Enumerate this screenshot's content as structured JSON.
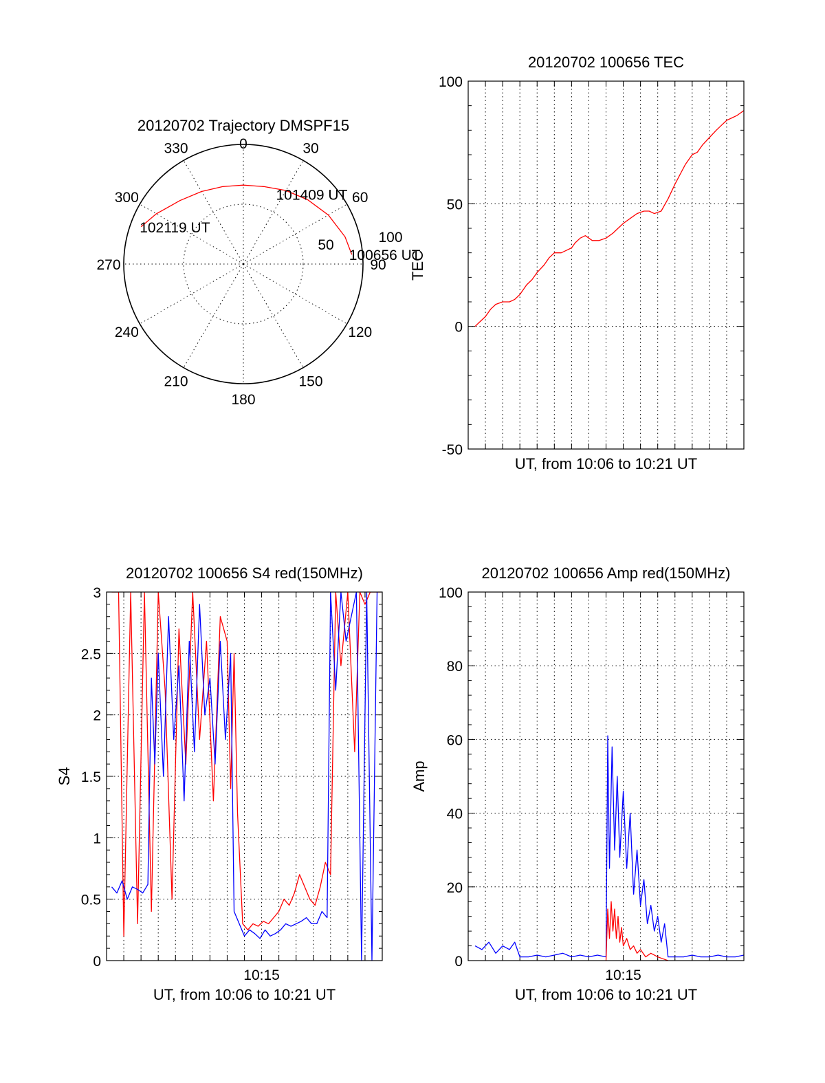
{
  "chart_data": [
    {
      "id": "trajectory",
      "type": "polar",
      "title": "20120702 Trajectory DMSPF15",
      "angle_labels": [
        "0",
        "30",
        "60",
        "90",
        "120",
        "150",
        "180",
        "210",
        "240",
        "270",
        "300",
        "330"
      ],
      "radius_labels": [
        "50",
        "100"
      ],
      "radial_range": [
        0,
        100
      ],
      "rings": [
        50,
        100
      ],
      "spokes_deg": [
        0,
        30,
        60,
        90,
        120,
        150,
        180,
        210,
        240,
        270,
        300,
        330
      ],
      "color": "#ff0000",
      "track": [
        {
          "az": 290,
          "r": 91
        },
        {
          "az": 300,
          "r": 84
        },
        {
          "az": 315,
          "r": 75
        },
        {
          "az": 330,
          "r": 70
        },
        {
          "az": 345,
          "r": 67
        },
        {
          "az": 0,
          "r": 66
        },
        {
          "az": 15,
          "r": 67
        },
        {
          "az": 30,
          "r": 71
        },
        {
          "az": 45,
          "r": 76
        },
        {
          "az": 60,
          "r": 82
        },
        {
          "az": 75,
          "r": 88
        },
        {
          "az": 85,
          "r": 91
        }
      ],
      "annotations": [
        {
          "text": "102119 UT",
          "az": 290,
          "r": 91
        },
        {
          "text": "101409 UT",
          "az": 45,
          "r": 76
        },
        {
          "text": "100656 UT",
          "az": 85,
          "r": 91
        }
      ]
    },
    {
      "id": "tec",
      "type": "line",
      "title": "20120702 100656 TEC",
      "xlabel": "UT, from 10:06 to 10:21 UT",
      "ylabel": "TEC",
      "xlim": [
        606.0,
        622.0
      ],
      "ylim": [
        -50,
        100
      ],
      "yticks": [
        -50,
        0,
        50,
        100
      ],
      "xgrid": [
        607,
        608,
        609,
        610,
        611,
        612,
        613,
        614,
        615,
        616,
        617,
        618,
        619,
        620,
        621
      ],
      "xticklabels": [],
      "series": [
        {
          "color": "#ff0000",
          "x": [
            606.4,
            606.7,
            607.0,
            607.3,
            607.6,
            608.0,
            608.4,
            608.7,
            609.0,
            609.4,
            609.7,
            610.0,
            610.4,
            610.7,
            611.0,
            611.4,
            611.7,
            612.0,
            612.2,
            612.5,
            612.8,
            613.2,
            613.6,
            614.0,
            614.4,
            614.7,
            615.0,
            615.4,
            615.8,
            616.2,
            616.5,
            616.8,
            617.2,
            617.6,
            618.0,
            618.3,
            618.6,
            619.0,
            619.3,
            619.6,
            620.0,
            620.4,
            620.7,
            621.0,
            621.3,
            621.6,
            621.8,
            622.0
          ],
          "y": [
            0,
            2,
            4,
            7,
            9,
            10,
            10,
            11,
            13,
            17,
            19,
            22,
            25,
            28,
            30,
            30,
            31,
            32,
            34,
            36,
            37,
            35,
            35,
            36,
            38,
            40,
            42,
            44,
            46,
            47,
            47,
            46,
            47,
            52,
            58,
            62,
            66,
            70,
            71,
            74,
            77,
            80,
            82,
            84,
            85,
            86,
            87,
            88
          ]
        }
      ]
    },
    {
      "id": "s4",
      "type": "line",
      "title": "20120702 100656 S4 red(150MHz)",
      "xlabel": "UT, from 10:06 to 10:21 UT",
      "ylabel": "S4",
      "xlim": [
        606.0,
        622.0
      ],
      "ylim": [
        0,
        3
      ],
      "yticks": [
        0,
        0.5,
        1,
        1.5,
        2,
        2.5,
        3
      ],
      "yticklabels": [
        "0",
        "0.5",
        "1",
        "1.5",
        "2",
        "2.5",
        "3"
      ],
      "xgrid": [
        607,
        608,
        609,
        610,
        611,
        612,
        613,
        614,
        615,
        616,
        617,
        618,
        619,
        620,
        621
      ],
      "xticks": [
        {
          "x": 615,
          "label": "10:15"
        }
      ],
      "series": [
        {
          "color": "#ff0000",
          "x": [
            606.3,
            606.7,
            607.0,
            607.4,
            607.8,
            608.2,
            608.6,
            609.0,
            609.4,
            609.8,
            610.2,
            610.6,
            611.0,
            611.4,
            611.8,
            612.2,
            612.6,
            613.0,
            613.2,
            613.4,
            613.6,
            613.9,
            614.2,
            614.5,
            614.8,
            615.1,
            615.4,
            615.7,
            616.0,
            616.3,
            616.6,
            616.9,
            617.2,
            617.5,
            617.8,
            618.1,
            618.4,
            618.7,
            619.0,
            619.3,
            619.6,
            620.0,
            620.4,
            620.7,
            621.0,
            621.3,
            621.6,
            621.9
          ],
          "y": [
            3,
            3,
            0.2,
            3,
            0.3,
            3,
            0.4,
            3,
            2.2,
            0.5,
            2.7,
            1.6,
            3,
            1.8,
            2.6,
            1.3,
            2.8,
            2.6,
            1.4,
            2.5,
            1.2,
            0.3,
            0.25,
            0.3,
            0.28,
            0.32,
            0.3,
            0.35,
            0.4,
            0.5,
            0.45,
            0.55,
            0.7,
            0.6,
            0.5,
            0.45,
            0.6,
            0.8,
            0.7,
            3,
            2.4,
            3,
            1.7,
            3,
            2.9,
            3,
            3,
            3
          ]
        },
        {
          "color": "#0000ff",
          "x": [
            606.3,
            606.6,
            606.9,
            607.2,
            607.5,
            607.8,
            608.1,
            608.4,
            608.6,
            608.8,
            609.0,
            609.3,
            609.6,
            609.9,
            610.2,
            610.5,
            610.8,
            611.1,
            611.4,
            611.7,
            612.0,
            612.3,
            612.6,
            612.9,
            613.2,
            613.4,
            613.7,
            614.0,
            614.3,
            614.6,
            614.9,
            615.2,
            615.5,
            615.8,
            616.1,
            616.4,
            616.7,
            617.0,
            617.3,
            617.6,
            617.9,
            618.2,
            618.5,
            618.8,
            619.0,
            619.3,
            619.6,
            619.9,
            620.2,
            620.5,
            620.8,
            621.1,
            621.4,
            621.7
          ],
          "y": [
            0.6,
            0.55,
            0.65,
            0.5,
            0.6,
            0.58,
            0.55,
            0.62,
            2.3,
            1.6,
            2.5,
            1.5,
            2.8,
            1.8,
            2.4,
            1.3,
            2.6,
            1.7,
            2.9,
            2.0,
            2.3,
            1.6,
            2.6,
            1.8,
            2.5,
            0.4,
            0.3,
            0.2,
            0.25,
            0.22,
            0.18,
            0.25,
            0.2,
            0.22,
            0.25,
            0.3,
            0.28,
            0.3,
            0.32,
            0.35,
            0.3,
            0.3,
            0.4,
            0.35,
            3,
            2.2,
            3,
            2.6,
            2.8,
            3,
            0,
            3,
            0,
            3
          ]
        }
      ]
    },
    {
      "id": "amp",
      "type": "line",
      "title": "20120702 100656 Amp red(150MHz)",
      "xlabel": "UT, from 10:06 to 10:21 UT",
      "ylabel": "Amp",
      "xlim": [
        606.0,
        622.0
      ],
      "ylim": [
        0,
        100
      ],
      "yticks": [
        0,
        20,
        40,
        60,
        80,
        100
      ],
      "xgrid": [
        607,
        608,
        609,
        610,
        611,
        612,
        613,
        614,
        615,
        616,
        617,
        618,
        619,
        620,
        621
      ],
      "xticks": [
        {
          "x": 615,
          "label": "10:15"
        }
      ],
      "series": [
        {
          "color": "#0000ff",
          "x": [
            606.4,
            606.8,
            607.2,
            607.6,
            608.0,
            608.4,
            608.7,
            609.0,
            609.5,
            610.0,
            610.5,
            611.0,
            611.5,
            612.0,
            612.5,
            613.0,
            613.5,
            614.0,
            614.1,
            614.2,
            614.35,
            614.5,
            614.65,
            614.8,
            615.0,
            615.2,
            615.4,
            615.6,
            615.8,
            616.0,
            616.2,
            616.4,
            616.6,
            616.8,
            617.0,
            617.2,
            617.4,
            617.6,
            618.0,
            618.5,
            619.0,
            619.5,
            620.0,
            620.5,
            621.0,
            621.5,
            622.0
          ],
          "y": [
            4,
            3,
            5,
            2,
            4,
            3,
            5,
            1,
            1,
            1.5,
            1,
            1.5,
            2,
            1,
            1.5,
            1,
            1.5,
            1,
            61,
            25,
            58,
            30,
            50,
            28,
            46,
            25,
            40,
            18,
            30,
            15,
            22,
            10,
            15,
            8,
            12,
            5,
            10,
            1,
            1,
            1,
            1.5,
            1,
            1,
            1.5,
            1,
            1,
            1.5
          ]
        },
        {
          "color": "#ff0000",
          "x": [
            614.0,
            614.1,
            614.2,
            614.3,
            614.4,
            614.5,
            614.6,
            614.7,
            614.8,
            614.9,
            615.0,
            615.2,
            615.4,
            615.6,
            615.8,
            616.0,
            616.3,
            616.6,
            617.0,
            617.3,
            617.6
          ],
          "y": [
            0,
            14,
            6,
            16,
            8,
            14,
            6,
            12,
            5,
            9,
            4,
            6,
            3,
            4,
            2,
            3,
            1,
            2,
            1,
            0.5,
            0
          ]
        }
      ]
    }
  ]
}
